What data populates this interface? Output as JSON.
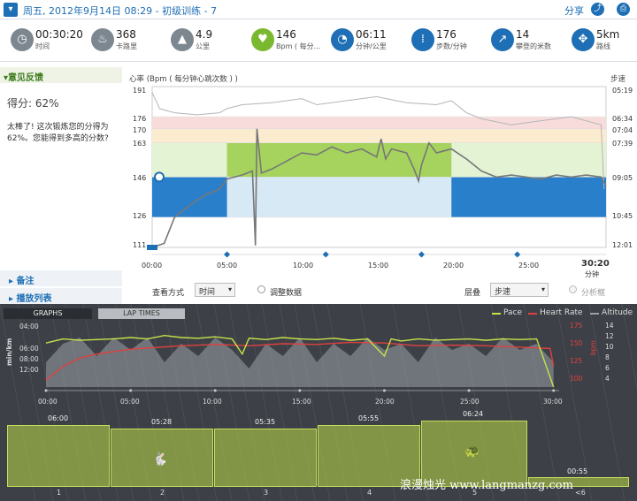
{
  "header": {
    "title": "周五, 2012年9月14日 08:29 - 初级训练 - 7",
    "share": "分享",
    "share_icon": "share-icon",
    "print_icon": "print-icon"
  },
  "stats": [
    {
      "value": "00:30:20",
      "label": "时间",
      "icon": "stopwatch-icon",
      "color": "#7d8790"
    },
    {
      "value": "368",
      "label": "卡路里",
      "icon": "flame-icon",
      "color": "#7d8790"
    },
    {
      "value": "4.9",
      "label": "公里",
      "icon": "route-icon",
      "color": "#7d8790"
    },
    {
      "value": "146",
      "label": "Bpm ( 每分...",
      "icon": "heart-icon",
      "color": "#7ab830"
    },
    {
      "value": "06:11",
      "label": "分钟/公里",
      "icon": "pace-gauge-icon",
      "color": "#1e6fb5"
    },
    {
      "value": "176",
      "label": "步数/分钟",
      "icon": "footsteps-icon",
      "color": "#1e6fb5"
    },
    {
      "value": "14",
      "label": "攀登的米数",
      "icon": "climb-icon",
      "color": "#1e6fb5"
    },
    {
      "value": "5km",
      "label": "路线",
      "icon": "compass-icon",
      "color": "#1e6fb5"
    }
  ],
  "feedback": {
    "title": "意见反馈",
    "score": "得分: 62%",
    "message": "太棒了! 这次锻炼您的分得为 62%。您能得到多高的分数?",
    "notes": "备注",
    "playlist": "播放列表"
  },
  "hr_chart": {
    "caption_left": "心率 (Bpm ( 每分钟心跳次数 ) )",
    "caption_right": "步速",
    "y_ticks": [
      "191",
      "176",
      "170",
      "163",
      "146",
      "126",
      "111"
    ],
    "pace_ticks": [
      "05:19",
      "06:34",
      "07:04",
      "07:39",
      "09:05",
      "10:45",
      "12:01"
    ],
    "x_ticks": [
      "00:00",
      "05:00",
      "10:00",
      "15:00",
      "20:00",
      "25:00"
    ],
    "total_time": "30:20",
    "total_unit": "分钟",
    "view_label": "查看方式",
    "view_value": "时间",
    "adjust_label": "调整数据",
    "stack_label": "层叠",
    "stack_value": "步速",
    "analyze_label": "分析框",
    "colors": {
      "zone_green": "#a5d35e",
      "zone_blue": "#2a7fca",
      "hr_line": "#777777",
      "pace_line": "#b5b5b5"
    }
  },
  "bottom": {
    "tab_graphs": "GRAPHS",
    "tab_laps": "LAP TIMES",
    "legend": {
      "pace": "Pace",
      "hr": "Heart Rate",
      "alt": "Altitude"
    },
    "y_pace": [
      "04:00",
      "06:00",
      "08:00",
      "12:00"
    ],
    "y_pace_label": "min/km",
    "y_bpm": [
      "175",
      "150",
      "125",
      "100"
    ],
    "y_bpm_label": "bpm",
    "y_alt": [
      "14",
      "12",
      "10",
      "8",
      "6",
      "4"
    ],
    "x_ticks": [
      "00:00",
      "05:00",
      "10:00",
      "15:00",
      "20:00",
      "25:00",
      "30:00"
    ],
    "laps": [
      {
        "n": "1",
        "pace": "06:00"
      },
      {
        "n": "2",
        "pace": "05:28"
      },
      {
        "n": "3",
        "pace": "05:35"
      },
      {
        "n": "4",
        "pace": "05:55"
      },
      {
        "n": "5",
        "pace": "06:24"
      },
      {
        "n": "<6",
        "pace": "00:55"
      }
    ],
    "watermark": "浪漫烛光 www.langmanzg.com",
    "colors": {
      "pace": "#c6e24a",
      "hr": "#e04040",
      "alt": "#9aa0a6"
    }
  },
  "chart_data": [
    {
      "type": "line",
      "title": "",
      "xlabel": "",
      "ylabel": "心率 (Bpm ( 每分钟心跳次数 ) )",
      "x": [
        "00:00",
        "02:00",
        "05:00",
        "06:00",
        "10:00",
        "15:00",
        "20:00",
        "22:00",
        "25:00",
        "30:00"
      ],
      "series": [
        {
          "name": "心率",
          "values": [
            111,
            128,
            146,
            150,
            160,
            158,
            162,
            146,
            145,
            146
          ]
        }
      ],
      "ylim": [
        111,
        191
      ]
    },
    {
      "type": "line",
      "title": "",
      "xlabel": "",
      "ylabel": "min/km",
      "x": [
        "00:00",
        "05:00",
        "10:00",
        "15:00",
        "20:00",
        "25:00",
        "30:00"
      ],
      "series": [
        {
          "name": "Pace",
          "values": [
            6.0,
            5.5,
            5.4,
            5.6,
            5.9,
            6.3,
            6.0
          ]
        },
        {
          "name": "Heart Rate",
          "values": [
            100,
            148,
            150,
            152,
            155,
            150,
            148
          ]
        }
      ],
      "ylim": [
        4,
        14
      ]
    }
  ]
}
